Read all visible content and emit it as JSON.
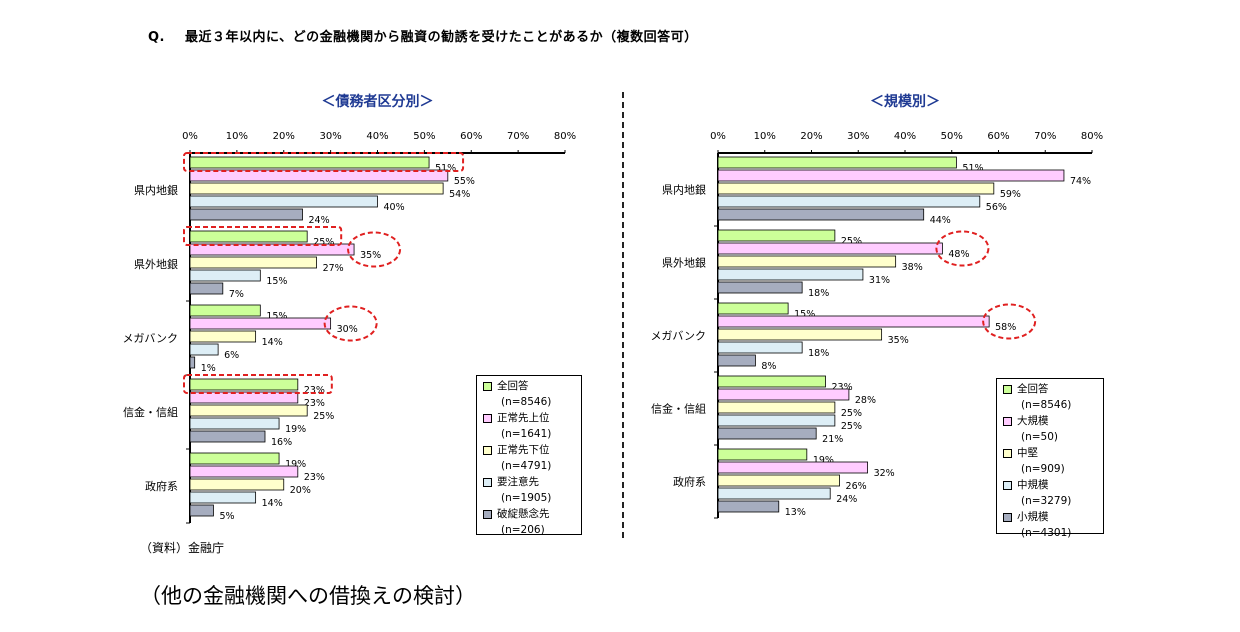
{
  "question": {
    "mark": "Q.",
    "text": "最近３年以内に、どの金融機関から融資の勧誘を受けたことがあるか（複数回答可）"
  },
  "source": "（資料）金融庁",
  "next_heading": "（他の金融機関への借換えの検討）",
  "colors": {
    "series1": "#ccff99",
    "series2": "#ffccff",
    "series3": "#ffffcc",
    "series4": "#ddeef6",
    "series5": "#a6adbf",
    "highlight": "#e02020",
    "title": "#1f3a93"
  },
  "chart_data": [
    {
      "type": "bar",
      "orientation": "horizontal",
      "title": "＜債務者区分別＞",
      "categories": [
        "県内地銀",
        "県外地銀",
        "メガバンク",
        "信金・信組",
        "政府系"
      ],
      "xlim": [
        0,
        80
      ],
      "xticks": [
        "0%",
        "10%",
        "20%",
        "30%",
        "40%",
        "50%",
        "60%",
        "70%",
        "80%"
      ],
      "grid": false,
      "legend_position": "bottom-right",
      "series": [
        {
          "name": "全回答",
          "n": "(n=8546)",
          "values": [
            51,
            25,
            15,
            23,
            19
          ]
        },
        {
          "name": "正常先上位",
          "n": "(n=1641)",
          "values": [
            55,
            35,
            30,
            23,
            23
          ]
        },
        {
          "name": "正常先下位",
          "n": "(n=4791)",
          "values": [
            54,
            27,
            14,
            25,
            20
          ]
        },
        {
          "name": "要注意先",
          "n": "(n=1905)",
          "values": [
            40,
            15,
            6,
            19,
            14
          ]
        },
        {
          "name": "破綻懸念先",
          "n": "(n=206)",
          "values": [
            24,
            7,
            1,
            16,
            5
          ]
        }
      ],
      "highlights": {
        "rect": [
          [
            0,
            0
          ],
          [
            1,
            0
          ],
          [
            3,
            0
          ]
        ],
        "ellipse": [
          [
            1,
            1
          ],
          [
            2,
            1
          ]
        ]
      }
    },
    {
      "type": "bar",
      "orientation": "horizontal",
      "title": "＜規模別＞",
      "categories": [
        "県内地銀",
        "県外地銀",
        "メガバンク",
        "信金・信組",
        "政府系"
      ],
      "xlim": [
        0,
        80
      ],
      "xticks": [
        "0%",
        "10%",
        "20%",
        "30%",
        "40%",
        "50%",
        "60%",
        "70%",
        "80%"
      ],
      "grid": false,
      "legend_position": "bottom-right",
      "series": [
        {
          "name": "全回答",
          "n": "(n=8546)",
          "values": [
            51,
            25,
            15,
            23,
            19
          ]
        },
        {
          "name": "大規模",
          "n": "(n=50)",
          "values": [
            74,
            48,
            58,
            28,
            32
          ]
        },
        {
          "name": "中堅",
          "n": "(n=909)",
          "values": [
            59,
            38,
            35,
            25,
            26
          ]
        },
        {
          "name": "中規模",
          "n": "(n=3279)",
          "values": [
            56,
            31,
            18,
            25,
            24
          ]
        },
        {
          "name": "小規模",
          "n": "(n=4301)",
          "values": [
            44,
            18,
            8,
            21,
            13
          ]
        }
      ],
      "highlights": {
        "rect": [],
        "ellipse": [
          [
            1,
            1
          ],
          [
            2,
            1
          ]
        ]
      }
    }
  ]
}
